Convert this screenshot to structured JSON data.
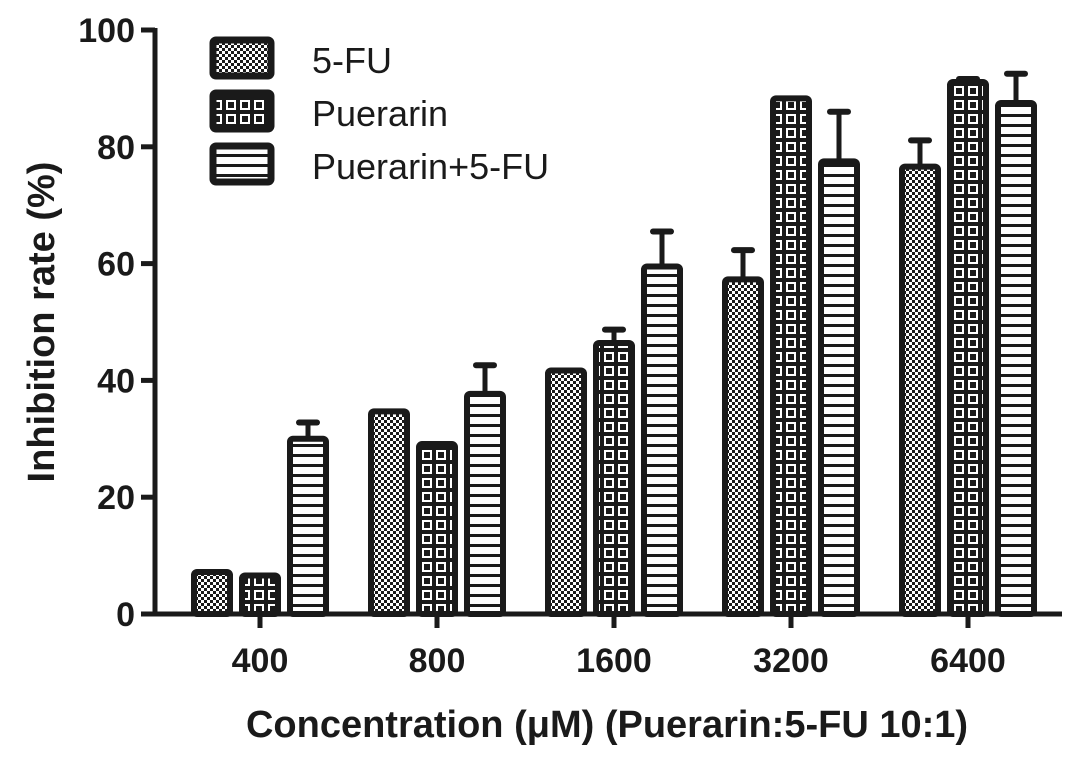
{
  "chart_data": {
    "type": "bar",
    "title": "",
    "xlabel": "Concentration (μM) (Puerarin:5-FU 10:1)",
    "ylabel": "Inhibition rate  (%)",
    "ylim": [
      0,
      100
    ],
    "yticks": [
      "0",
      "20",
      "40",
      "60",
      "80",
      "100"
    ],
    "categories": [
      "400",
      "800",
      "1600",
      "3200",
      "6400"
    ],
    "legend_position": "top-left",
    "grid": false,
    "series": [
      {
        "name": "5-FU",
        "pattern": "fine-checker",
        "values": [
          7.2,
          34.7,
          41.7,
          57.3,
          76.6
        ],
        "errors": [
          0,
          0,
          0,
          5.0,
          4.5
        ]
      },
      {
        "name": "Puerarin",
        "pattern": "coarse-checker",
        "values": [
          6.6,
          29.1,
          46.4,
          88.3,
          91.1
        ],
        "errors": [
          0,
          0,
          2.3,
          0,
          0.5
        ]
      },
      {
        "name": "Puerarin+5-FU",
        "pattern": "horizontal-stripes",
        "values": [
          30.0,
          37.7,
          59.5,
          77.5,
          87.5
        ],
        "errors": [
          2.8,
          4.9,
          6.0,
          8.5,
          5.0
        ]
      }
    ],
    "colors": {
      "ink": "#1a1a1a",
      "background": "#ffffff"
    }
  }
}
